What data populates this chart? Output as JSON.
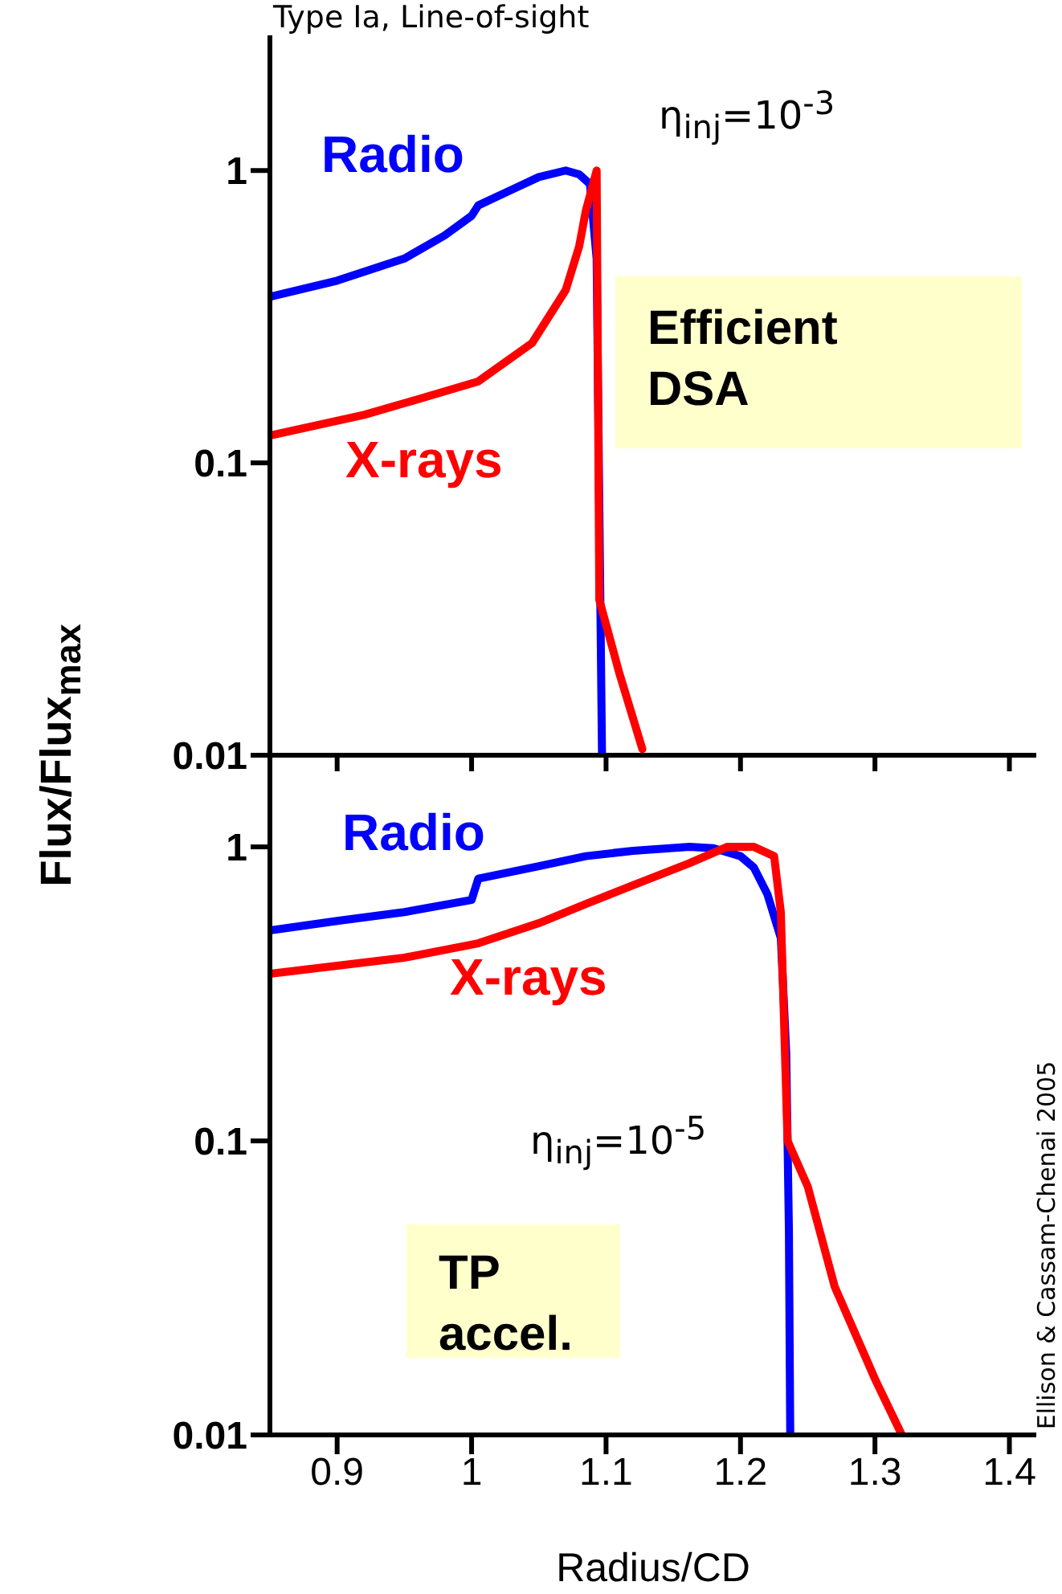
{
  "chart_data": [
    {
      "type": "line",
      "title": "Type Ia, Line-of-sight",
      "ylabel": "Flux/Flux$_{max}$",
      "log": "y",
      "tick_labels": "y",
      "xlim": [
        0.85,
        1.42
      ],
      "xticks": [
        0.9,
        1,
        1.1,
        1.2,
        1.3,
        1.4
      ],
      "ylim": [
        0.01,
        2.9
      ],
      "yticks": [
        0.01,
        0.1,
        1
      ],
      "annotations": [
        "η$_{inj}$=10$^{-3}$",
        "Efficient DSA"
      ],
      "series": [
        {
          "name": "Radio",
          "color": "#0000ff",
          "x": [
            0.85,
            0.9,
            0.95,
            0.98,
            1.0,
            1.005,
            1.03,
            1.05,
            1.07,
            1.08,
            1.088,
            1.093,
            1.097
          ],
          "values": [
            0.37,
            0.42,
            0.5,
            0.6,
            0.7,
            0.76,
            0.86,
            0.95,
            1.0,
            0.97,
            0.9,
            0.5,
            0.01
          ]
        },
        {
          "name": "X-rays",
          "color": "#ff0000",
          "x": [
            0.85,
            0.92,
            0.96,
            1.005,
            1.045,
            1.07,
            1.08,
            1.085,
            1.093,
            1.095,
            1.11,
            1.127
          ],
          "values": [
            0.124,
            0.146,
            0.165,
            0.19,
            0.257,
            0.39,
            0.55,
            0.73,
            1.0,
            0.034,
            0.019,
            0.0105
          ]
        }
      ]
    },
    {
      "type": "line",
      "xlabel": "Radius/CD",
      "log": "y",
      "xlim": [
        0.85,
        1.42
      ],
      "xticks": [
        0.9,
        1,
        1.1,
        1.2,
        1.3,
        1.4
      ],
      "ylim": [
        0.01,
        2.05
      ],
      "yticks": [
        0.01,
        0.1,
        1
      ],
      "annotations": [
        "η$_{inj}$=10$^{-5}$",
        "TP accel.",
        "Ellison & Cassam-Chenai 2005"
      ],
      "series": [
        {
          "name": "Radio",
          "color": "#0000ff",
          "x": [
            0.85,
            0.9,
            0.95,
            1.0,
            1.005,
            1.05,
            1.085,
            1.12,
            1.162,
            1.18,
            1.2,
            1.21,
            1.22,
            1.23,
            1.234,
            1.236,
            1.237
          ],
          "values": [
            0.52,
            0.56,
            0.6,
            0.66,
            0.78,
            0.86,
            0.93,
            0.97,
            1.0,
            0.99,
            0.93,
            0.85,
            0.69,
            0.49,
            0.2,
            0.05,
            0.01
          ]
        },
        {
          "name": "X-rays",
          "color": "#ff0000",
          "x": [
            0.85,
            0.95,
            1.005,
            1.05,
            1.085,
            1.12,
            1.162,
            1.19,
            1.21,
            1.225,
            1.23,
            1.235,
            1.25,
            1.27,
            1.3,
            1.32
          ],
          "values": [
            0.37,
            0.42,
            0.47,
            0.55,
            0.64,
            0.74,
            0.88,
            1.0,
            1.0,
            0.93,
            0.6,
            0.1,
            0.07,
            0.032,
            0.0155,
            0.01
          ]
        }
      ]
    }
  ]
}
